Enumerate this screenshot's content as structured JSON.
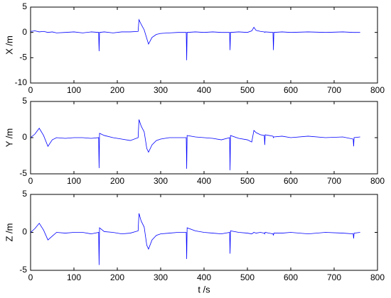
{
  "chart_data": [
    {
      "type": "line",
      "ylabel": "X /m",
      "x": [
        0,
        10,
        20,
        30,
        40,
        50,
        60,
        80,
        100,
        120,
        140,
        157,
        158,
        159,
        170,
        190,
        210,
        230,
        248,
        250,
        255,
        262,
        268,
        272,
        280,
        290,
        300,
        320,
        340,
        359,
        360,
        361,
        380,
        400,
        420,
        440,
        459,
        460,
        461,
        480,
        500,
        510,
        515,
        520,
        530,
        539,
        540,
        541,
        559,
        560,
        561,
        580,
        600,
        640,
        680,
        720,
        744,
        745,
        746,
        760
      ],
      "series": [
        {
          "color": "#0000ff",
          "values": [
            0.2,
            0.3,
            0.1,
            0.2,
            0,
            0.1,
            -0.1,
            0,
            0.1,
            -0.1,
            0.1,
            0,
            -3.7,
            0,
            0.1,
            -0.1,
            0.1,
            0.1,
            0.2,
            2.5,
            1.6,
            0.5,
            -1.2,
            -2.3,
            -1,
            -0.4,
            -0.2,
            -0.1,
            0,
            0,
            -5.5,
            0,
            0.1,
            0,
            0.1,
            0,
            0,
            -3.5,
            0,
            0.1,
            0,
            0.3,
            1,
            0.4,
            0.2,
            0.1,
            0,
            0.1,
            0,
            -3.5,
            0,
            0.1,
            0,
            0.1,
            0,
            0.1,
            0,
            0,
            0,
            0
          ]
        }
      ],
      "xlim": [
        0,
        800
      ],
      "xticks": [
        0,
        100,
        200,
        300,
        400,
        500,
        600,
        700,
        800
      ],
      "ylim": [
        -10,
        5
      ],
      "yticks": [
        -10,
        -5,
        0,
        5
      ]
    },
    {
      "type": "line",
      "ylabel": "Y /m",
      "x": [
        0,
        10,
        20,
        30,
        40,
        50,
        60,
        80,
        100,
        120,
        140,
        157,
        158,
        159,
        170,
        190,
        210,
        230,
        248,
        250,
        255,
        262,
        268,
        272,
        280,
        290,
        300,
        320,
        340,
        359,
        360,
        361,
        380,
        400,
        420,
        440,
        459,
        460,
        461,
        480,
        500,
        510,
        515,
        520,
        530,
        539,
        540,
        541,
        559,
        560,
        561,
        580,
        600,
        640,
        680,
        720,
        744,
        745,
        746,
        760
      ],
      "series": [
        {
          "color": "#0000ff",
          "values": [
            0,
            0.5,
            1.3,
            0.3,
            -1.2,
            -0.3,
            0,
            -0.1,
            0,
            0,
            -0.1,
            0,
            -4.2,
            0.6,
            0.3,
            0,
            -0.2,
            -0.4,
            0,
            2.5,
            1.6,
            0.8,
            -1.5,
            -2,
            -1,
            -0.4,
            -0.2,
            0,
            0,
            0,
            -4.3,
            0.3,
            0.1,
            0,
            -0.1,
            -0.3,
            0,
            -4.5,
            0.3,
            -0.1,
            -0.3,
            -0.6,
            1,
            0.7,
            0.4,
            0.3,
            -1,
            0.4,
            0.2,
            0,
            0.1,
            0.2,
            0,
            0.2,
            0,
            0.1,
            -0.2,
            -1.2,
            0,
            0.1
          ]
        }
      ],
      "xlim": [
        0,
        800
      ],
      "xticks": [
        0,
        100,
        200,
        300,
        400,
        500,
        600,
        700,
        800
      ],
      "ylim": [
        -5,
        5
      ],
      "yticks": [
        -5,
        0,
        5
      ]
    },
    {
      "type": "line",
      "ylabel": "Z /m",
      "xlabel": "t /s",
      "x": [
        0,
        10,
        20,
        30,
        40,
        50,
        60,
        80,
        100,
        120,
        140,
        157,
        158,
        159,
        170,
        190,
        210,
        230,
        248,
        250,
        255,
        262,
        268,
        272,
        280,
        290,
        300,
        320,
        340,
        359,
        360,
        361,
        380,
        400,
        420,
        440,
        459,
        460,
        461,
        480,
        500,
        510,
        515,
        520,
        530,
        539,
        540,
        541,
        559,
        560,
        561,
        580,
        600,
        640,
        680,
        720,
        744,
        745,
        746,
        760
      ],
      "series": [
        {
          "color": "#0000ff",
          "values": [
            0,
            0.5,
            1.2,
            0.3,
            -1,
            -0.5,
            0,
            -0.1,
            0,
            0,
            -0.2,
            0,
            -4.3,
            0.6,
            0.1,
            0,
            -0.2,
            -0.1,
            0.2,
            2.5,
            1.5,
            0.7,
            -1.7,
            -2.2,
            -1,
            -0.4,
            -0.2,
            -0.1,
            0,
            0,
            -3.5,
            0.6,
            0.2,
            0,
            -0.1,
            -0.2,
            0,
            -2.8,
            0.2,
            0,
            -0.1,
            -0.2,
            0,
            -0.1,
            0,
            -0.1,
            -0.2,
            0,
            -0.2,
            -0.4,
            -0.1,
            -0.1,
            0,
            -0.2,
            0,
            -0.1,
            -0.2,
            -0.8,
            -0.1,
            0
          ]
        }
      ],
      "xlim": [
        0,
        800
      ],
      "xticks": [
        0,
        100,
        200,
        300,
        400,
        500,
        600,
        700,
        800
      ],
      "ylim": [
        -5,
        5
      ],
      "yticks": [
        -5,
        0,
        5
      ]
    }
  ]
}
